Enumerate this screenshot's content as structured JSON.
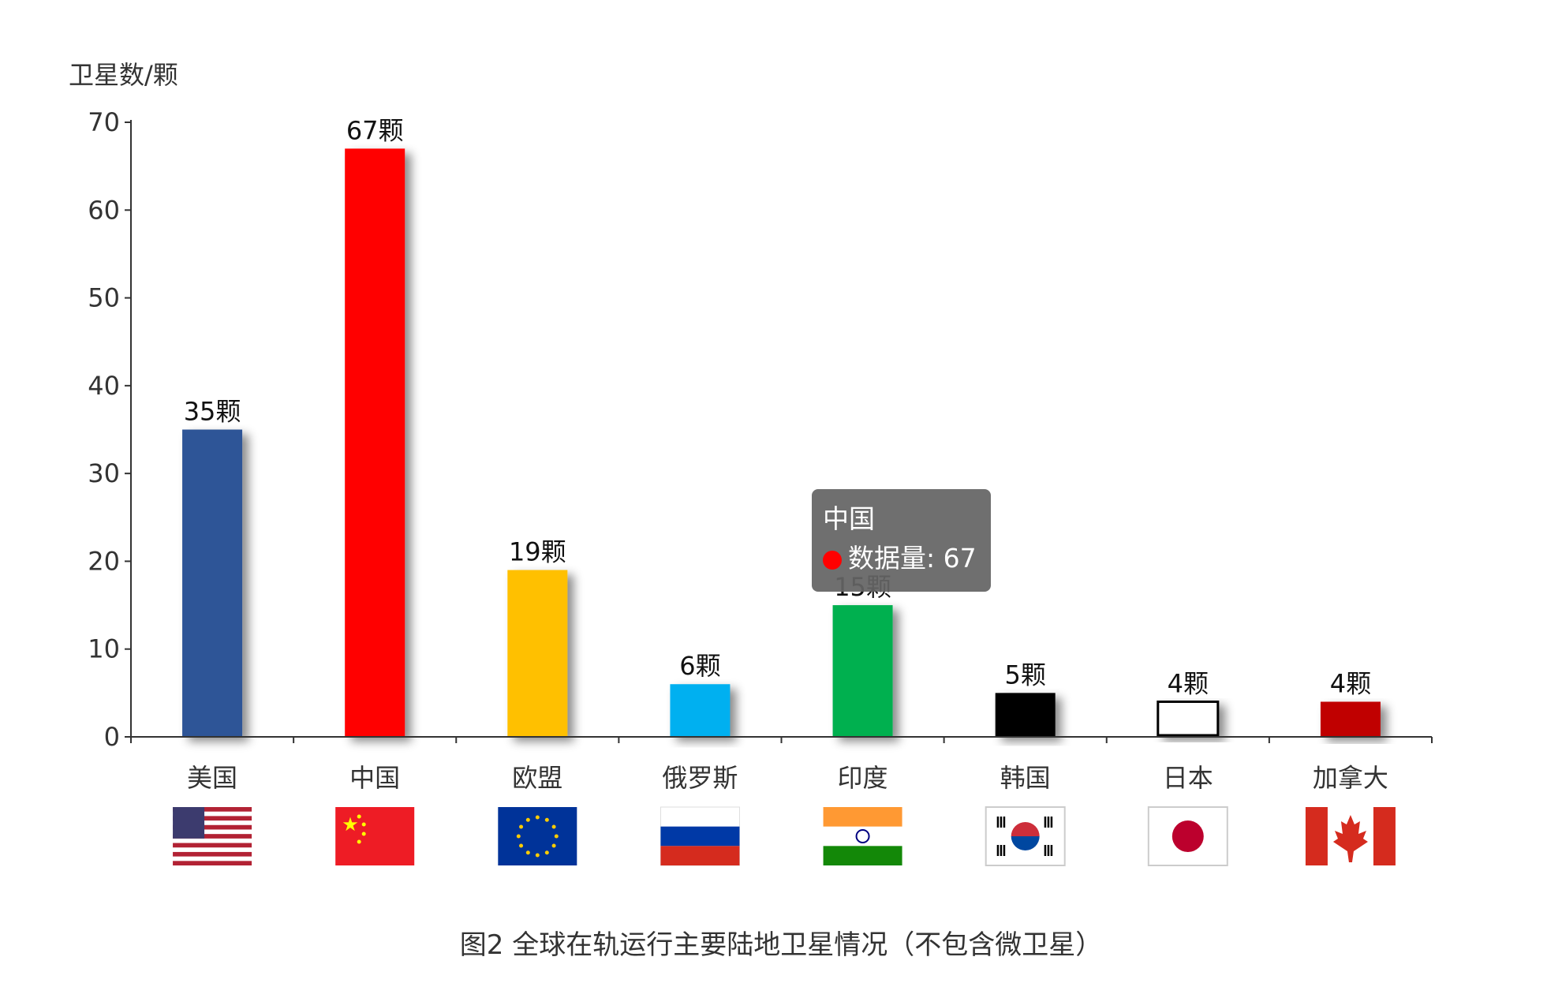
{
  "chart_data": {
    "type": "bar",
    "ylabel": "卫星数/颗",
    "ylim": [
      0,
      70
    ],
    "yticks": [
      0,
      10,
      20,
      30,
      40,
      50,
      60,
      70
    ],
    "categories": [
      "美国",
      "中国",
      "欧盟",
      "俄罗斯",
      "印度",
      "韩国",
      "日本",
      "加拿大"
    ],
    "values": [
      35,
      67,
      19,
      6,
      15,
      5,
      4,
      4
    ],
    "data_labels": [
      "35颗",
      "67颗",
      "19颗",
      "6颗",
      "15颗",
      "5颗",
      "4颗",
      "4颗"
    ],
    "colors": [
      "#2f5597",
      "#ff0000",
      "#ffc000",
      "#00b0f0",
      "#00b050",
      "#000000",
      "#ffffff",
      "#c00000"
    ],
    "flags": [
      "usa-flag",
      "china-flag",
      "eu-flag",
      "russia-flag",
      "india-flag",
      "korea-flag",
      "japan-flag",
      "canada-flag"
    ],
    "grid": false
  },
  "tooltip": {
    "title": "中国",
    "series": "数据量",
    "value": "67",
    "row": "数据量: 67",
    "color": "#ff0000"
  },
  "caption": "图2 全球在轨运行主要陆地卫星情况（不包含微卫星）"
}
